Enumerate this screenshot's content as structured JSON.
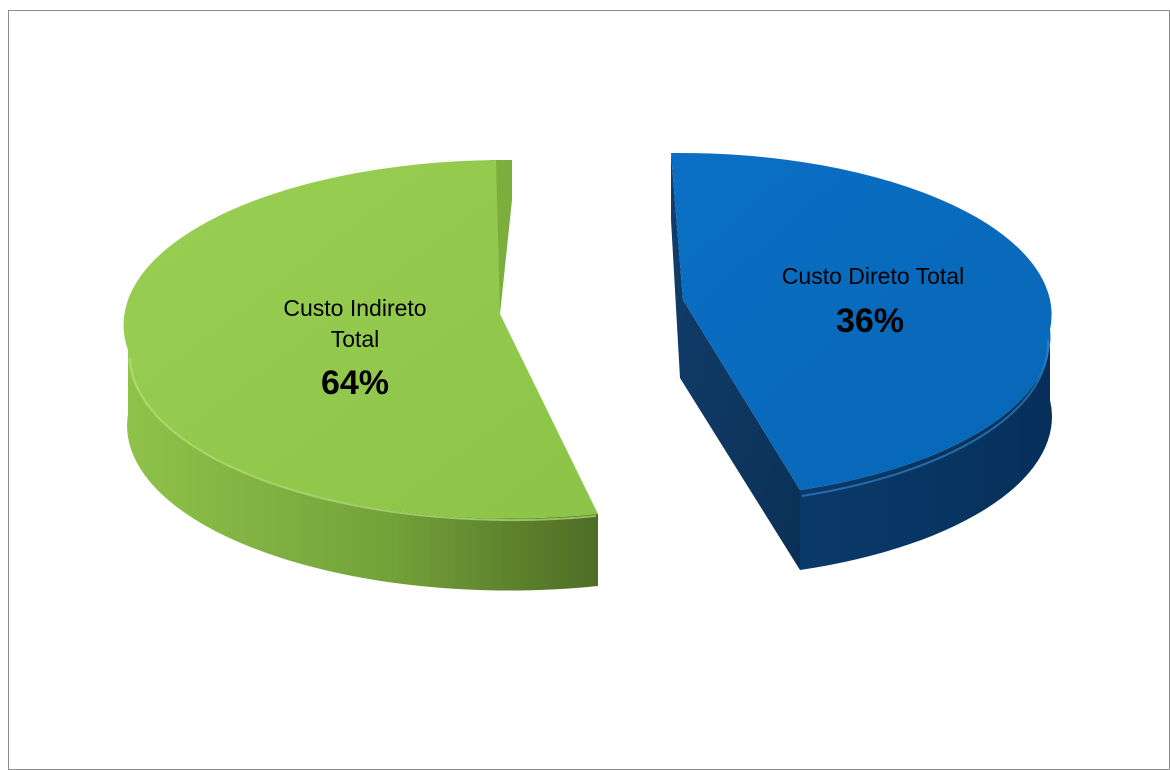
{
  "chart_data": {
    "type": "pie",
    "style": "3d-exploded",
    "slices": [
      {
        "name_lines": [
          "Custo Indireto",
          "Total"
        ],
        "value": 64,
        "label": "64%",
        "color": "#92c94a"
      },
      {
        "name_lines": [
          "Custo Direto Total"
        ],
        "value": 36,
        "label": "36%",
        "color": "#0070c0"
      }
    ]
  }
}
